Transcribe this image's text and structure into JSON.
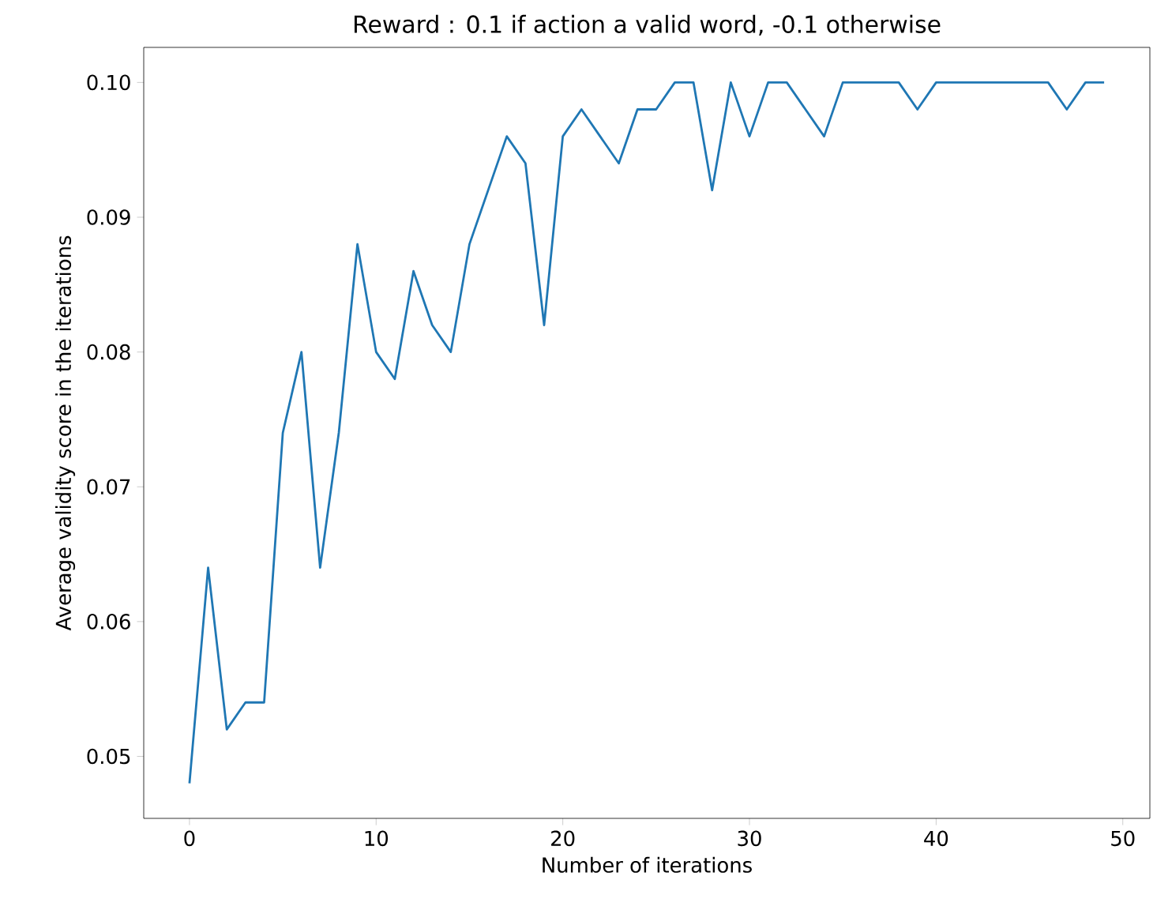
{
  "chart_data": {
    "type": "line",
    "title": "Reward : 0.1 if action a valid word, -0.1 otherwise",
    "xlabel": "Number of iterations",
    "ylabel": "Average validity score in the iterations",
    "x": [
      0,
      1,
      2,
      3,
      4,
      5,
      6,
      7,
      8,
      9,
      10,
      11,
      12,
      13,
      14,
      15,
      16,
      17,
      18,
      19,
      20,
      21,
      22,
      23,
      24,
      25,
      26,
      27,
      28,
      29,
      30,
      31,
      32,
      33,
      34,
      35,
      36,
      37,
      38,
      39,
      40,
      41,
      42,
      43,
      44,
      45,
      46,
      47,
      48,
      49
    ],
    "series": [
      {
        "color": "#1f77b4",
        "values": [
          0.048,
          0.064,
          0.052,
          0.054,
          0.054,
          0.074,
          0.08,
          0.064,
          0.074,
          0.088,
          0.08,
          0.078,
          0.086,
          0.082,
          0.08,
          0.088,
          0.092,
          0.096,
          0.094,
          0.082,
          0.096,
          0.098,
          0.096,
          0.094,
          0.098,
          0.098,
          0.1,
          0.1,
          0.092,
          0.1,
          0.096,
          0.1,
          0.1,
          0.098,
          0.096,
          0.1,
          0.1,
          0.1,
          0.1,
          0.098,
          0.1,
          0.1,
          0.1,
          0.1,
          0.1,
          0.1,
          0.1,
          0.098,
          0.1,
          0.1
        ]
      }
    ],
    "xlim": [
      -2.45,
      51.45
    ],
    "ylim": [
      0.0454,
      0.1026
    ],
    "xticks": [
      0,
      10,
      20,
      30,
      40,
      50
    ],
    "yticks": [
      {
        "value": 0.05,
        "label": "0.05"
      },
      {
        "value": 0.06,
        "label": "0.06"
      },
      {
        "value": 0.07,
        "label": "0.07"
      },
      {
        "value": 0.08,
        "label": "0.08"
      },
      {
        "value": 0.09,
        "label": "0.09"
      },
      {
        "value": 0.1,
        "label": "0.10"
      }
    ],
    "grid": false,
    "line_style": "solid"
  }
}
